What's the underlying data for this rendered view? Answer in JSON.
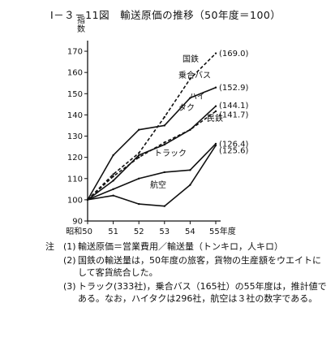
{
  "title": "Ⅰ－３－11図　輸送原価の推移（50年度＝100）",
  "chart_data": {
    "type": "line",
    "title": "Ⅰ－３－11図　輸送原価の推移（50年度＝100）",
    "ylabel": "指数",
    "xlabel": "",
    "categories": [
      "昭和50",
      "51",
      "52",
      "53",
      "54",
      "55年度"
    ],
    "ylim": [
      90,
      175
    ],
    "yticks": [
      90,
      100,
      110,
      120,
      130,
      140,
      150,
      160,
      170
    ],
    "grid": false,
    "series": [
      {
        "name": "国鉄",
        "style": "dashed",
        "values": [
          100,
          112,
          122,
          139,
          157,
          169.0
        ],
        "end_label": "(169.0)"
      },
      {
        "name": "乗合バス",
        "style": "solid",
        "values": [
          100,
          121,
          133,
          135,
          148,
          152.9
        ],
        "end_label": "(152.9)"
      },
      {
        "name": "ハイタク",
        "style": "solid",
        "values": [
          100,
          109,
          121,
          126,
          133,
          144.1
        ],
        "end_label": "(144.1)"
      },
      {
        "name": "民鉄",
        "style": "dashed",
        "values": [
          100,
          111,
          120,
          127,
          133,
          141.7
        ],
        "end_label": "(141.7)"
      },
      {
        "name": "トラック",
        "style": "solid",
        "values": [
          100,
          105,
          110,
          113,
          114,
          126.4
        ],
        "end_label": "(126.4)"
      },
      {
        "name": "航空",
        "style": "solid",
        "values": [
          100,
          102,
          98,
          97,
          107,
          125.6
        ],
        "end_label": "(125.6)"
      }
    ],
    "labels": [
      "国鉄",
      "乗合バス",
      "ハイ",
      "タク",
      "民鉄",
      "トラック",
      "航空"
    ]
  },
  "notes": {
    "head": "注",
    "items": [
      {
        "num": "(1)",
        "text": "輸送原価＝営業費用／輸送量（トンキロ，人キロ）"
      },
      {
        "num": "(2)",
        "text": "国鉄の輸送量は，50年度の旅客，貨物の生産額をウエイトにして客貨統合した。"
      },
      {
        "num": "(3)",
        "text": "トラック(333社)，乗合バス（165社）の55年度は，推計値である。なお，ハイタクは296社，航空は３社の数字である。"
      }
    ]
  }
}
